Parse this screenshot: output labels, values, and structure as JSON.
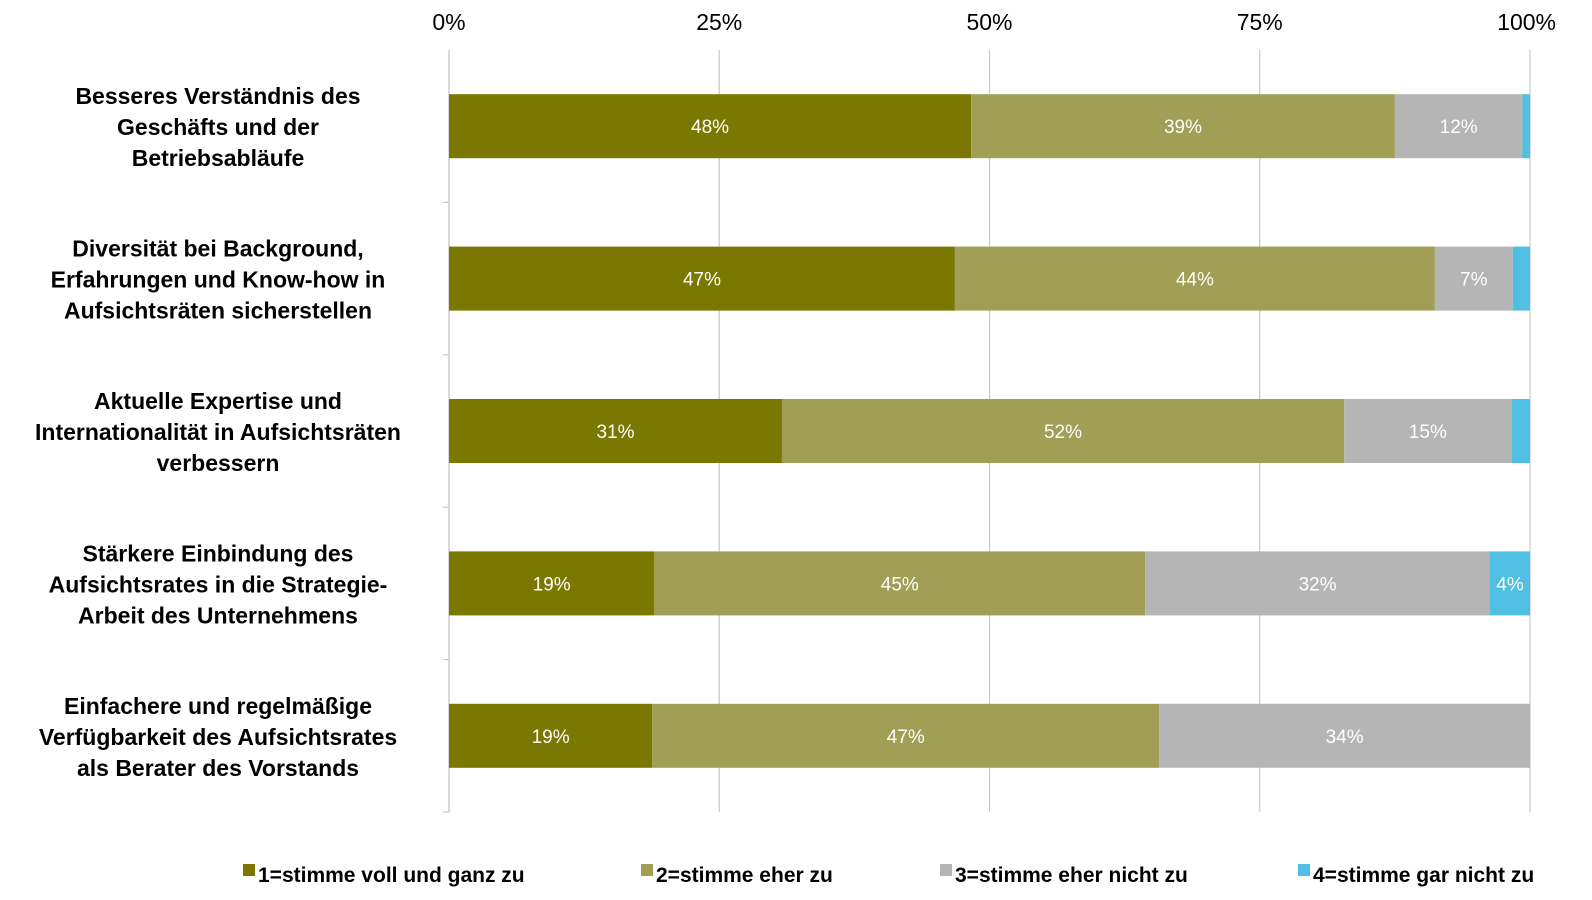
{
  "chart_data": {
    "type": "bar",
    "orientation": "horizontal",
    "stacked": "percent",
    "categories": [
      [
        "Besseres Verständnis des",
        "Geschäfts und der",
        "Betriebsabläufe"
      ],
      [
        "Diversität bei Background,",
        "Erfahrungen und Know-how in",
        "Aufsichtsräten sicherstellen"
      ],
      [
        "Aktuelle Expertise und",
        "Internationalität in Aufsichtsräten",
        "verbessern"
      ],
      [
        "Stärkere Einbindung des",
        "Aufsichtsrates in die Strategie-",
        "Arbeit des Unternehmens"
      ],
      [
        "Einfachere und regelmäßige",
        "Verfügbarkeit des Aufsichtsrates",
        "als Berater des Vorstands"
      ]
    ],
    "series": [
      {
        "name": "1=stimme voll und ganz zu",
        "color": "#7a7800",
        "values": [
          48.3,
          46.8,
          30.8,
          19.0,
          18.8
        ],
        "labels": [
          "48%",
          "47%",
          "31%",
          "19%",
          "19%"
        ]
      },
      {
        "name": "2=stimme eher zu",
        "color": "#a09f55",
        "values": [
          39.2,
          44.4,
          52.0,
          45.4,
          46.9
        ],
        "labels": [
          "39%",
          "44%",
          "52%",
          "45%",
          "47%"
        ]
      },
      {
        "name": "3=stimme eher nicht zu",
        "color": "#b5b5b5",
        "values": [
          11.8,
          7.2,
          15.5,
          31.9,
          34.3
        ],
        "labels": [
          "12%",
          "7%",
          "15%",
          "32%",
          "34%"
        ]
      },
      {
        "name": "4=stimme gar nicht zu",
        "color": "#4fc0e3",
        "values": [
          0.7,
          1.6,
          1.7,
          3.7,
          0
        ],
        "labels": [
          "",
          "",
          "",
          "4%",
          ""
        ]
      }
    ],
    "x_ticks": [
      "0%",
      "25%",
      "50%",
      "75%",
      "100%"
    ],
    "xlim": [
      0,
      100
    ],
    "x_axis_position": "top",
    "grid": "vertical",
    "legend": "bottom"
  }
}
